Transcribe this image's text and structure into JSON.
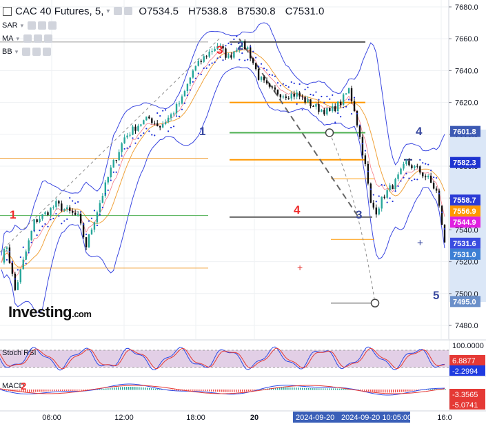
{
  "header": {
    "symbol": "CAC 40 Futures, 5,",
    "open": "O7534.5",
    "high": "H7538.8",
    "low": "B7530.8",
    "close": "C7531.0"
  },
  "indicators": [
    "SAR",
    "MA",
    "BB"
  ],
  "logo": {
    "main": "Investing",
    "suffix": ".com"
  },
  "chart_data": {
    "type": "candlestick",
    "symbol": "CAC 40 Futures",
    "timeframe": "5",
    "ohlc_last": {
      "open": 7534.5,
      "high": 7538.8,
      "low": 7530.8,
      "close": 7531.0
    },
    "y_ticks": [
      "7680.0",
      "7660.0",
      "7640.0",
      "7620.0",
      "7600.0",
      "7580.0",
      "7560.0",
      "7540.0",
      "7520.0",
      "7500.0",
      "7480.0"
    ],
    "ylim": [
      7474,
      7684
    ],
    "x_ticks": [
      "06:00",
      "12:00",
      "18:00",
      "20",
      "16:0"
    ],
    "price_path": [
      {
        "x": 0,
        "y": 7522
      },
      {
        "x": 2,
        "y": 7530
      },
      {
        "x": 5,
        "y": 7502
      },
      {
        "x": 8,
        "y": 7520
      },
      {
        "x": 12,
        "y": 7545
      },
      {
        "x": 16,
        "y": 7550
      },
      {
        "x": 20,
        "y": 7556
      },
      {
        "x": 24,
        "y": 7552
      },
      {
        "x": 28,
        "y": 7548
      },
      {
        "x": 31,
        "y": 7530
      },
      {
        "x": 35,
        "y": 7552
      },
      {
        "x": 40,
        "y": 7578
      },
      {
        "x": 45,
        "y": 7598
      },
      {
        "x": 50,
        "y": 7606
      },
      {
        "x": 54,
        "y": 7610
      },
      {
        "x": 58,
        "y": 7605
      },
      {
        "x": 62,
        "y": 7612
      },
      {
        "x": 66,
        "y": 7622
      },
      {
        "x": 70,
        "y": 7640
      },
      {
        "x": 75,
        "y": 7650
      },
      {
        "x": 79,
        "y": 7656
      },
      {
        "x": 83,
        "y": 7648
      },
      {
        "x": 87,
        "y": 7657
      },
      {
        "x": 90,
        "y": 7654
      },
      {
        "x": 94,
        "y": 7636
      },
      {
        "x": 98,
        "y": 7628
      },
      {
        "x": 103,
        "y": 7625
      },
      {
        "x": 108,
        "y": 7625
      },
      {
        "x": 112,
        "y": 7620
      },
      {
        "x": 116,
        "y": 7616
      },
      {
        "x": 120,
        "y": 7614
      },
      {
        "x": 124,
        "y": 7620
      },
      {
        "x": 127,
        "y": 7628
      },
      {
        "x": 129,
        "y": 7616
      },
      {
        "x": 131,
        "y": 7598
      },
      {
        "x": 133,
        "y": 7580
      },
      {
        "x": 135,
        "y": 7556
      },
      {
        "x": 137,
        "y": 7552
      },
      {
        "x": 140,
        "y": 7562
      },
      {
        "x": 144,
        "y": 7570
      },
      {
        "x": 148,
        "y": 7582
      },
      {
        "x": 152,
        "y": 7578
      },
      {
        "x": 156,
        "y": 7572
      },
      {
        "x": 159,
        "y": 7564
      },
      {
        "x": 161,
        "y": 7544
      },
      {
        "x": 162,
        "y": 7531
      }
    ],
    "price_labels": [
      {
        "text": "7601.8",
        "value": 7601.8,
        "color": "#3d5ab3"
      },
      {
        "text": "7582.3",
        "value": 7582.3,
        "color": "#1d34d0"
      },
      {
        "text": "7558.7",
        "value": 7558.7,
        "color": "#2b3bd6"
      },
      {
        "text": "7556.9",
        "value": 7556.9,
        "color": "#ff9800"
      },
      {
        "text": "7544.9",
        "value": 7544.9,
        "color": "#e020e0"
      },
      {
        "text": "7531.6",
        "value": 7531.6,
        "color": "#3a4ce0"
      },
      {
        "text": "7531.0",
        "value": 7531.0,
        "color": "#3d7fd4"
      },
      {
        "text": "7495.0",
        "value": 7495.0,
        "color": "#6a8fc9"
      }
    ],
    "annotations": [
      {
        "text": "1",
        "color": "#ef2a2a"
      },
      {
        "text": "1",
        "color": "#3b4ba0"
      },
      {
        "text": "2",
        "color": "#3b4ba0"
      },
      {
        "text": "3",
        "color": "#ef2a2a"
      },
      {
        "text": "4",
        "color": "#ef2a2a"
      },
      {
        "text": "3",
        "color": "#3b4ba0"
      },
      {
        "text": "4",
        "color": "#3b4ba0"
      },
      {
        "text": "5",
        "color": "#3b4ba0"
      }
    ],
    "panes": [
      {
        "name": "Stoch RSI",
        "labels": [
          {
            "text": "100.0000",
            "color": "#ffffff"
          },
          {
            "text": "6.8877",
            "color": "#e53935"
          },
          {
            "text": "-2.2994",
            "color": "#1e3ae0"
          }
        ]
      },
      {
        "name": "MACD",
        "labels": [
          {
            "text": "-3.3565",
            "color": "#e53935"
          },
          {
            "text": "-5.0741",
            "color": "#e53935"
          }
        ]
      }
    ],
    "pane_annotation": {
      "text": "2",
      "color": "#ef2a2a"
    },
    "crosshair_labels": [
      "2024-09-20",
      "2024-09-20 10:05:00"
    ]
  }
}
